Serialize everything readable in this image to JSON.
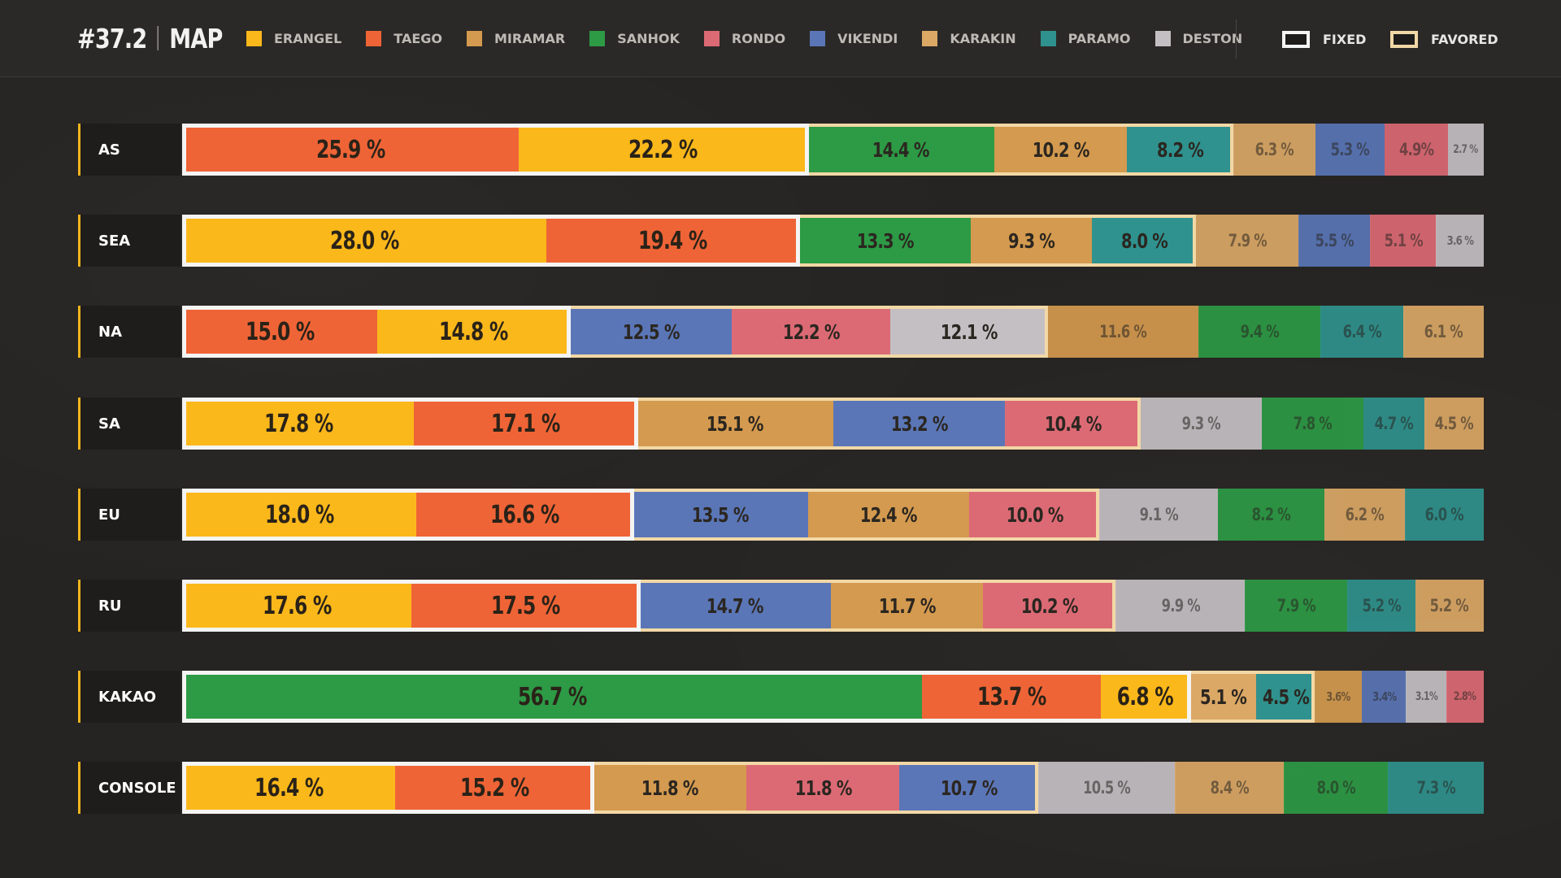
{
  "header": {
    "version": "#37.2",
    "title": "MAP",
    "markers": {
      "fixed": "FIXED",
      "favored": "FAVORED"
    }
  },
  "maps": [
    {
      "key": "erangel",
      "name": "ERANGEL",
      "color": "#fbb81b"
    },
    {
      "key": "taego",
      "name": "TAEGO",
      "color": "#ef6436"
    },
    {
      "key": "miramar",
      "name": "MIRAMAR",
      "color": "#d49a4f"
    },
    {
      "key": "sanhok",
      "name": "SANHOK",
      "color": "#2d9a45"
    },
    {
      "key": "rondo",
      "name": "RONDO",
      "color": "#dc6a74"
    },
    {
      "key": "vikendi",
      "name": "VIKENDI",
      "color": "#5a76b7"
    },
    {
      "key": "karakin",
      "name": "KARAKIN",
      "color": "#dba866"
    },
    {
      "key": "paramo",
      "name": "PARAMO",
      "color": "#2f928e"
    },
    {
      "key": "deston",
      "name": "DESTON",
      "color": "#c4bfc3"
    }
  ],
  "chart_data": {
    "type": "bar",
    "orientation": "horizontal-stacked",
    "value_unit": "%",
    "legend": "top",
    "grid": false,
    "rows": [
      {
        "region": "AS",
        "segments": [
          {
            "map": "taego",
            "value": 25.9,
            "label": "25.9 %"
          },
          {
            "map": "erangel",
            "value": 22.2,
            "label": "22.2 %"
          },
          {
            "map": "sanhok",
            "value": 14.4,
            "label": "14.4 %"
          },
          {
            "map": "miramar",
            "value": 10.2,
            "label": "10.2 %"
          },
          {
            "map": "paramo",
            "value": 8.2,
            "label": "8.2 %"
          },
          {
            "map": "karakin",
            "value": 6.3,
            "label": "6.3 %"
          },
          {
            "map": "vikendi",
            "value": 5.3,
            "label": "5.3 %"
          },
          {
            "map": "rondo",
            "value": 4.9,
            "label": "4.9%"
          },
          {
            "map": "deston",
            "value": 2.7,
            "label": "2.7 %"
          }
        ],
        "fixed_count": 2,
        "favored_count": 3
      },
      {
        "region": "SEA",
        "segments": [
          {
            "map": "erangel",
            "value": 28.0,
            "label": "28.0 %"
          },
          {
            "map": "taego",
            "value": 19.4,
            "label": "19.4 %"
          },
          {
            "map": "sanhok",
            "value": 13.3,
            "label": "13.3 %"
          },
          {
            "map": "miramar",
            "value": 9.3,
            "label": "9.3 %"
          },
          {
            "map": "paramo",
            "value": 8.0,
            "label": "8.0 %"
          },
          {
            "map": "karakin",
            "value": 7.9,
            "label": "7.9 %"
          },
          {
            "map": "vikendi",
            "value": 5.5,
            "label": "5.5 %"
          },
          {
            "map": "rondo",
            "value": 5.1,
            "label": "5.1 %"
          },
          {
            "map": "deston",
            "value": 3.6,
            "label": "3.6 %"
          }
        ],
        "fixed_count": 2,
        "favored_count": 3
      },
      {
        "region": "NA",
        "segments": [
          {
            "map": "taego",
            "value": 15.0,
            "label": "15.0 %"
          },
          {
            "map": "erangel",
            "value": 14.8,
            "label": "14.8 %"
          },
          {
            "map": "vikendi",
            "value": 12.5,
            "label": "12.5 %"
          },
          {
            "map": "rondo",
            "value": 12.2,
            "label": "12.2 %"
          },
          {
            "map": "deston",
            "value": 12.1,
            "label": "12.1 %"
          },
          {
            "map": "miramar",
            "value": 11.6,
            "label": "11.6 %"
          },
          {
            "map": "sanhok",
            "value": 9.4,
            "label": "9.4 %"
          },
          {
            "map": "paramo",
            "value": 6.4,
            "label": "6.4 %"
          },
          {
            "map": "karakin",
            "value": 6.1,
            "label": "6.1 %"
          }
        ],
        "fixed_count": 2,
        "favored_count": 3
      },
      {
        "region": "SA",
        "segments": [
          {
            "map": "erangel",
            "value": 17.8,
            "label": "17.8 %"
          },
          {
            "map": "taego",
            "value": 17.1,
            "label": "17.1 %"
          },
          {
            "map": "miramar",
            "value": 15.1,
            "label": "15.1 %"
          },
          {
            "map": "vikendi",
            "value": 13.2,
            "label": "13.2 %"
          },
          {
            "map": "rondo",
            "value": 10.4,
            "label": "10.4 %"
          },
          {
            "map": "deston",
            "value": 9.3,
            "label": "9.3 %"
          },
          {
            "map": "sanhok",
            "value": 7.8,
            "label": "7.8 %"
          },
          {
            "map": "paramo",
            "value": 4.7,
            "label": "4.7 %"
          },
          {
            "map": "karakin",
            "value": 4.5,
            "label": "4.5 %"
          }
        ],
        "fixed_count": 2,
        "favored_count": 3
      },
      {
        "region": "EU",
        "segments": [
          {
            "map": "erangel",
            "value": 18.0,
            "label": "18.0 %"
          },
          {
            "map": "taego",
            "value": 16.6,
            "label": "16.6 %"
          },
          {
            "map": "vikendi",
            "value": 13.5,
            "label": "13.5 %"
          },
          {
            "map": "miramar",
            "value": 12.4,
            "label": "12.4 %"
          },
          {
            "map": "rondo",
            "value": 10.0,
            "label": "10.0 %"
          },
          {
            "map": "deston",
            "value": 9.1,
            "label": "9.1 %"
          },
          {
            "map": "sanhok",
            "value": 8.2,
            "label": "8.2 %"
          },
          {
            "map": "karakin",
            "value": 6.2,
            "label": "6.2 %"
          },
          {
            "map": "paramo",
            "value": 6.0,
            "label": "6.0 %"
          }
        ],
        "fixed_count": 2,
        "favored_count": 3
      },
      {
        "region": "RU",
        "segments": [
          {
            "map": "erangel",
            "value": 17.6,
            "label": "17.6 %"
          },
          {
            "map": "taego",
            "value": 17.5,
            "label": "17.5 %"
          },
          {
            "map": "vikendi",
            "value": 14.7,
            "label": "14.7 %"
          },
          {
            "map": "miramar",
            "value": 11.7,
            "label": "11.7 %"
          },
          {
            "map": "rondo",
            "value": 10.2,
            "label": "10.2 %"
          },
          {
            "map": "deston",
            "value": 9.9,
            "label": "9.9 %"
          },
          {
            "map": "sanhok",
            "value": 7.9,
            "label": "7.9 %"
          },
          {
            "map": "paramo",
            "value": 5.2,
            "label": "5.2 %"
          },
          {
            "map": "karakin",
            "value": 5.2,
            "label": "5.2 %"
          }
        ],
        "fixed_count": 2,
        "favored_count": 3
      },
      {
        "region": "KAKAO",
        "segments": [
          {
            "map": "sanhok",
            "value": 56.7,
            "label": "56.7 %"
          },
          {
            "map": "taego",
            "value": 13.7,
            "label": "13.7 %"
          },
          {
            "map": "erangel",
            "value": 6.8,
            "label": "6.8 %"
          },
          {
            "map": "karakin",
            "value": 5.1,
            "label": "5.1 %"
          },
          {
            "map": "paramo",
            "value": 4.5,
            "label": "4.5 %"
          },
          {
            "map": "miramar",
            "value": 3.6,
            "label": "3.6%"
          },
          {
            "map": "vikendi",
            "value": 3.4,
            "label": "3.4%"
          },
          {
            "map": "deston",
            "value": 3.1,
            "label": "3.1%"
          },
          {
            "map": "rondo",
            "value": 2.8,
            "label": "2.8%"
          }
        ],
        "fixed_count": 3,
        "favored_count": 2
      },
      {
        "region": "CONSOLE",
        "segments": [
          {
            "map": "erangel",
            "value": 16.4,
            "label": "16.4 %"
          },
          {
            "map": "taego",
            "value": 15.2,
            "label": "15.2 %"
          },
          {
            "map": "miramar",
            "value": 11.8,
            "label": "11.8 %"
          },
          {
            "map": "rondo",
            "value": 11.8,
            "label": "11.8 %"
          },
          {
            "map": "vikendi",
            "value": 10.7,
            "label": "10.7 %"
          },
          {
            "map": "deston",
            "value": 10.5,
            "label": "10.5 %"
          },
          {
            "map": "karakin",
            "value": 8.4,
            "label": "8.4 %"
          },
          {
            "map": "sanhok",
            "value": 8.0,
            "label": "8.0 %"
          },
          {
            "map": "paramo",
            "value": 7.3,
            "label": "7.3 %"
          }
        ],
        "fixed_count": 2,
        "favored_count": 3
      }
    ]
  }
}
